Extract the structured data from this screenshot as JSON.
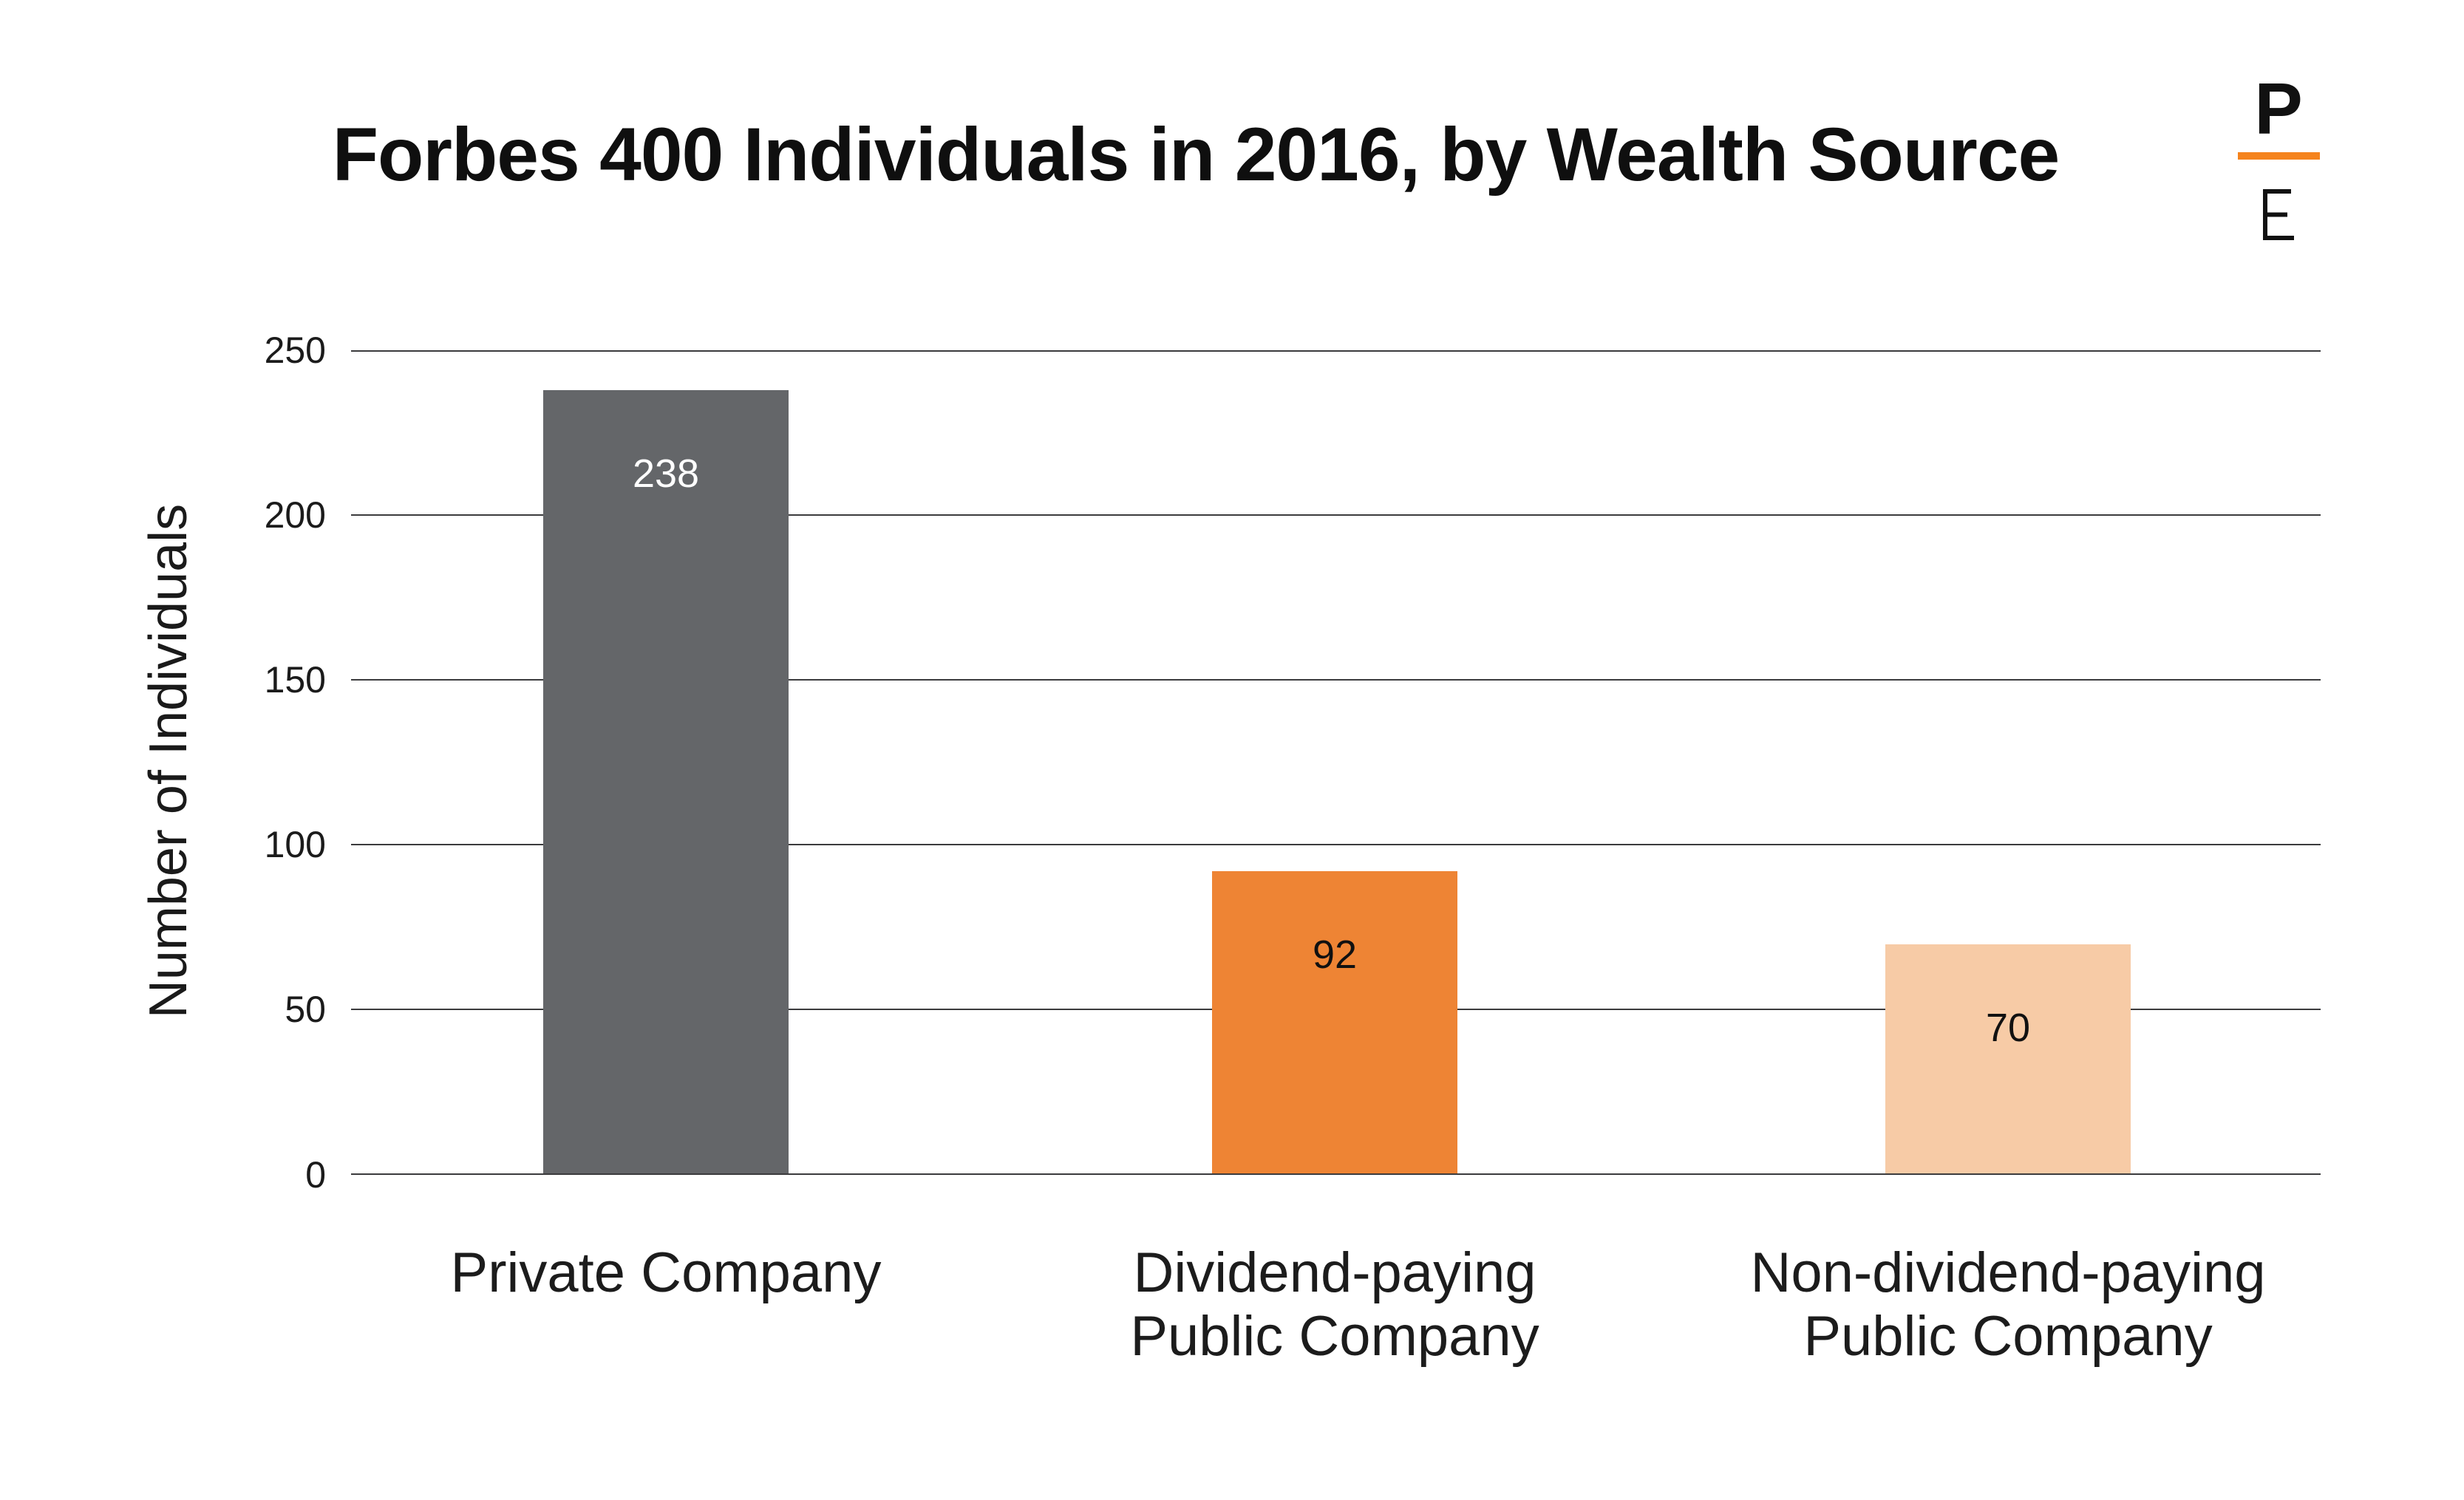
{
  "title": "Forbes 400 Individuals in 2016, by Wealth Source",
  "logo": {
    "top_letter": "P",
    "bottom_letter": "E",
    "accent_color": "#F5831D"
  },
  "y_axis": {
    "label": "Number of Individuals",
    "ticks": [
      "250",
      "200",
      "150",
      "100",
      "50",
      "0"
    ]
  },
  "bars": [
    {
      "value": "238",
      "color": "#646669",
      "value_color": "#FFFFFF",
      "label_line1": "Private Company"
    },
    {
      "value": "92",
      "color": "#EE8434",
      "value_color": "#111111",
      "label_line1": "Dividend-paying",
      "label_line2": "Public Company"
    },
    {
      "value": "70",
      "color": "#F7CBA6",
      "value_color": "#111111",
      "label_line1": "Non-dividend-paying",
      "label_line2": "Public Company"
    }
  ],
  "chart_data": {
    "type": "bar",
    "title": "Forbes 400 Individuals in 2016, by Wealth Source",
    "categories": [
      "Private Company",
      "Dividend-paying Public Company",
      "Non-dividend-paying Public Company"
    ],
    "values": [
      238,
      92,
      70
    ],
    "xlabel": "",
    "ylabel": "Number of Individuals",
    "ylim": [
      0,
      250
    ],
    "yticks": [
      250,
      200,
      150,
      100,
      50,
      0
    ],
    "grid": true,
    "legend": false,
    "bar_colors": [
      "#646669",
      "#EE8434",
      "#F7CBA6"
    ],
    "value_label_colors": [
      "#FFFFFF",
      "#111111",
      "#111111"
    ]
  }
}
